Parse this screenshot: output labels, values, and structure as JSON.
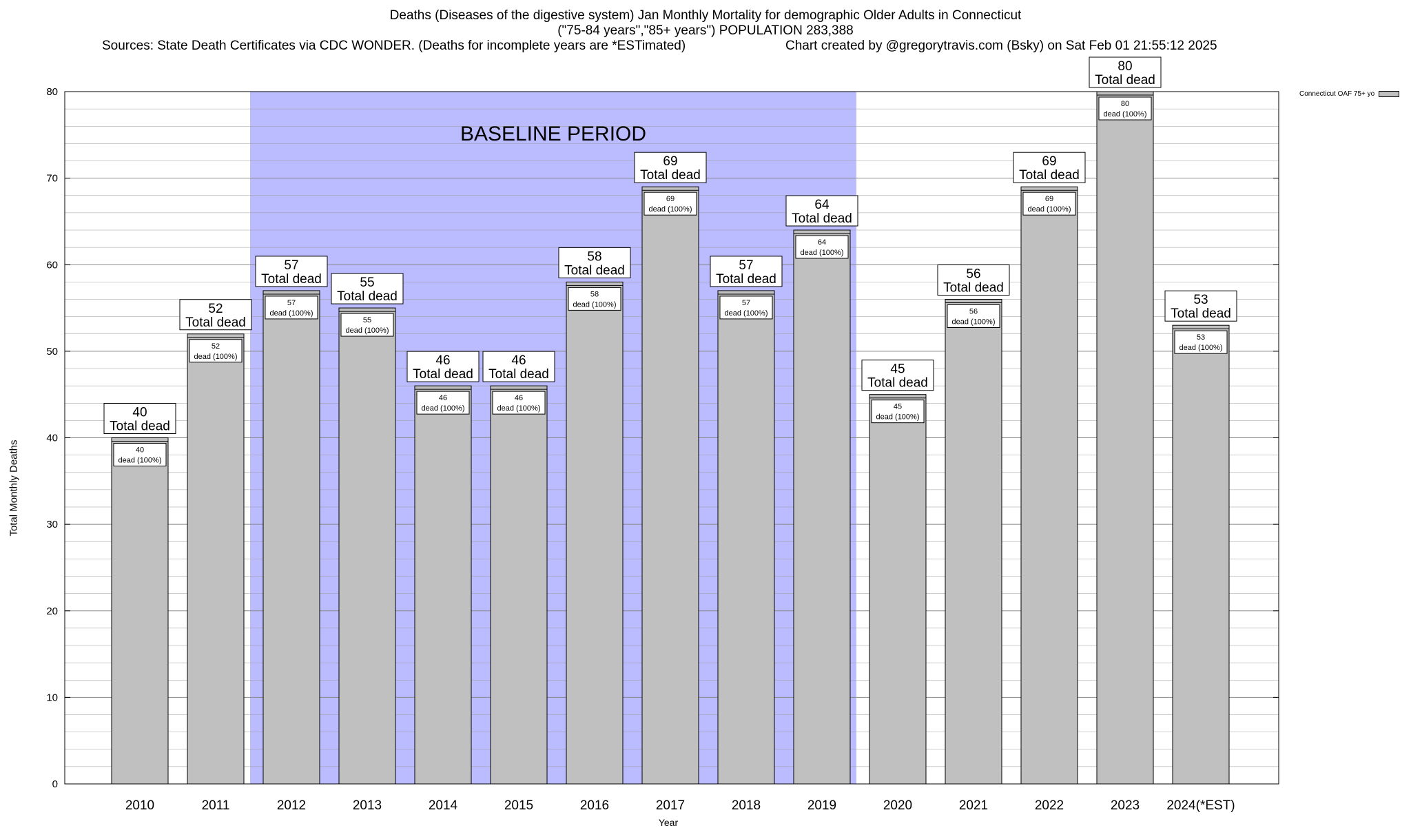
{
  "chart_data": {
    "type": "bar",
    "title": "Deaths (Diseases of the digestive system) Jan Monthly Mortality for demographic Older Adults in Connecticut",
    "subtitle": "(\"75-84 years\",\"85+ years\") POPULATION 283,388",
    "sources": "Sources: State Death Certificates via CDC WONDER. (Deaths for incomplete years are *ESTimated)",
    "credit": "Chart created by @gregorytravis.com (Bsky) on Sat Feb 01 21:55:12 2025",
    "xlabel": "Year",
    "ylabel": "Total Monthly Deaths",
    "ylim": [
      0,
      80
    ],
    "yticks": [
      0,
      10,
      20,
      30,
      40,
      50,
      60,
      70,
      80
    ],
    "grid": true,
    "legend": {
      "position": "top-right",
      "entries": [
        "Connecticut OAF 75+ yo"
      ]
    },
    "categories": [
      "2010",
      "2011",
      "2012",
      "2013",
      "2014",
      "2015",
      "2016",
      "2017",
      "2018",
      "2019",
      "2020",
      "2021",
      "2022",
      "2023",
      "2024(*EST)"
    ],
    "series": [
      {
        "name": "Connecticut OAF 75+ yo",
        "values": [
          40,
          52,
          57,
          55,
          46,
          46,
          58,
          69,
          57,
          64,
          45,
          56,
          69,
          80,
          53
        ]
      }
    ],
    "annotations": {
      "baseline_label": "BASELINE PERIOD",
      "baseline_range": [
        "2012",
        "2019"
      ],
      "total_label": "Total dead",
      "segment_label": "dead (100%)"
    },
    "colors": {
      "bar": "#c0c0c0",
      "baseline": "#bbbbff"
    }
  }
}
